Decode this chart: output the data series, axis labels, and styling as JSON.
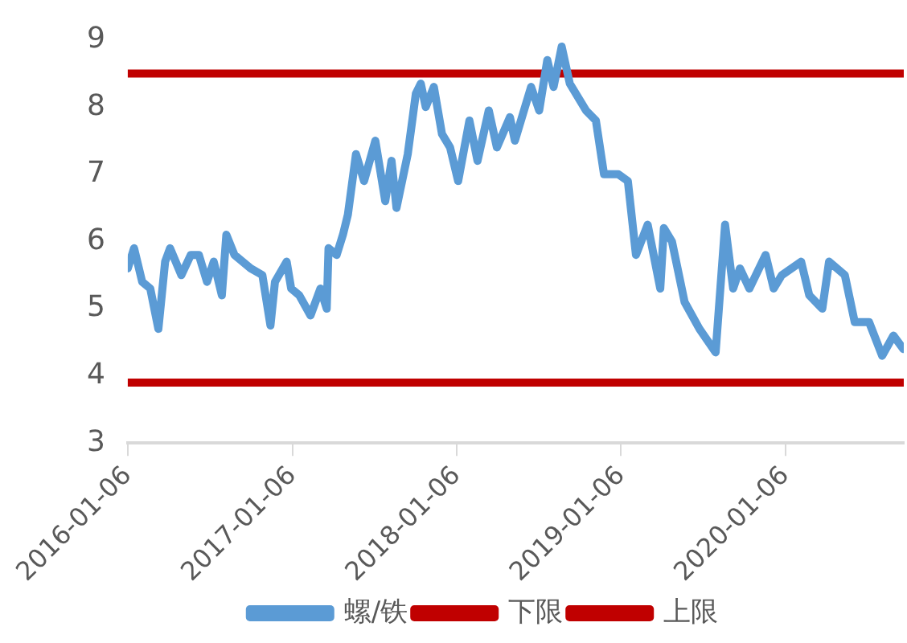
{
  "chart_data": {
    "type": "line",
    "xlim": [
      "2016-01-06",
      "2020-09-25"
    ],
    "xticks": [
      "2016-01-06",
      "2017-01-06",
      "2018-01-06",
      "2019-01-06",
      "2020-01-06"
    ],
    "ylim": [
      3,
      9
    ],
    "yticks": [
      3,
      4,
      5,
      6,
      7,
      8,
      9
    ],
    "grid": false,
    "legend": "bottom",
    "marker": "none",
    "line_style": "solid",
    "series": [
      {
        "name": "螺/铁",
        "color": "#5b9bd5",
        "x": [
          "2016-01-06",
          "2016-01-20",
          "2016-02-07",
          "2016-02-25",
          "2016-03-14",
          "2016-03-29",
          "2016-04-09",
          "2016-05-04",
          "2016-05-25",
          "2016-06-12",
          "2016-06-30",
          "2016-07-15",
          "2016-08-02",
          "2016-08-12",
          "2016-08-30",
          "2016-10-05",
          "2016-10-31",
          "2016-11-18",
          "2016-11-28",
          "2016-12-24",
          "2017-01-03",
          "2017-01-21",
          "2017-02-15",
          "2017-03-09",
          "2017-03-23",
          "2017-03-27",
          "2017-04-14",
          "2017-04-28",
          "2017-05-09",
          "2017-05-27",
          "2017-06-14",
          "2017-07-09",
          "2017-07-31",
          "2017-08-14",
          "2017-08-25",
          "2017-09-19",
          "2017-10-07",
          "2017-10-18",
          "2017-10-29",
          "2017-11-16",
          "2017-12-04",
          "2017-12-22",
          "2018-01-09",
          "2018-02-03",
          "2018-02-21",
          "2018-03-18",
          "2018-04-05",
          "2018-05-04",
          "2018-05-15",
          "2018-06-20",
          "2018-07-08",
          "2018-07-26",
          "2018-08-09",
          "2018-08-27",
          "2018-09-14",
          "2018-10-20",
          "2018-11-11",
          "2018-11-29",
          "2018-12-31",
          "2019-01-21",
          "2019-02-08",
          "2019-03-06",
          "2019-04-03",
          "2019-04-11",
          "2019-04-29",
          "2019-05-27",
          "2019-06-29",
          "2019-08-04",
          "2019-08-25",
          "2019-09-12",
          "2019-09-27",
          "2019-10-18",
          "2019-11-23",
          "2019-12-11",
          "2019-12-29",
          "2020-02-10",
          "2020-02-28",
          "2020-03-28",
          "2020-04-12",
          "2020-05-17",
          "2020-06-08",
          "2020-07-10",
          "2020-08-08",
          "2020-09-02",
          "2020-09-24"
        ],
        "values": [
          5.6,
          5.9,
          5.4,
          5.3,
          4.7,
          5.7,
          5.9,
          5.5,
          5.8,
          5.8,
          5.4,
          5.7,
          5.2,
          6.1,
          5.8,
          5.6,
          5.5,
          4.75,
          5.4,
          5.7,
          5.3,
          5.2,
          4.9,
          5.3,
          5.0,
          5.9,
          5.8,
          6.1,
          6.4,
          7.3,
          6.9,
          7.5,
          6.6,
          7.2,
          6.5,
          7.3,
          8.2,
          8.35,
          8.0,
          8.3,
          7.6,
          7.4,
          6.9,
          7.8,
          7.2,
          7.95,
          7.4,
          7.85,
          7.5,
          8.3,
          7.95,
          8.7,
          8.3,
          8.9,
          8.35,
          7.95,
          7.8,
          7.0,
          7.0,
          6.9,
          5.8,
          6.25,
          5.3,
          6.2,
          6.0,
          5.1,
          4.7,
          4.35,
          6.25,
          5.3,
          5.6,
          5.3,
          5.8,
          5.3,
          5.5,
          5.7,
          5.2,
          5.0,
          5.7,
          5.5,
          4.8,
          4.8,
          4.3,
          4.6,
          4.4
        ]
      },
      {
        "name": "下限",
        "color": "#c00000",
        "x": [
          "2016-01-06",
          "2020-09-25"
        ],
        "values": [
          3.9,
          3.9
        ]
      },
      {
        "name": "上限",
        "color": "#c00000",
        "x": [
          "2016-01-06",
          "2020-09-25"
        ],
        "values": [
          8.5,
          8.5
        ]
      }
    ]
  }
}
